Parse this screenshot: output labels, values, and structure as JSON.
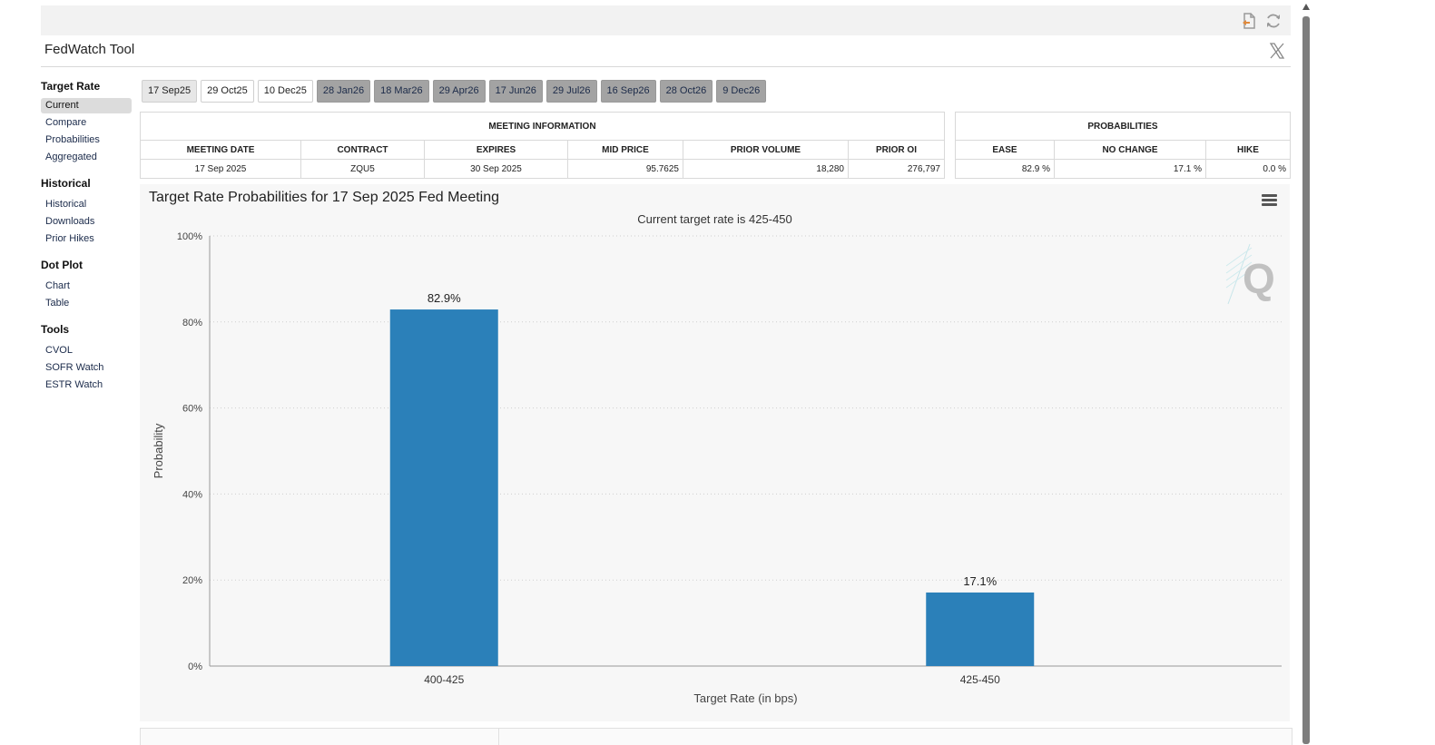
{
  "app": {
    "title": "FedWatch Tool"
  },
  "toolbar": {
    "icons": [
      "export-icon",
      "refresh-icon"
    ]
  },
  "sidebar": {
    "sections": [
      {
        "heading": "Target Rate",
        "items": [
          "Current",
          "Compare",
          "Probabilities",
          "Aggregated"
        ]
      },
      {
        "heading": "Historical",
        "items": [
          "Historical",
          "Downloads",
          "Prior Hikes"
        ]
      },
      {
        "heading": "Dot Plot",
        "items": [
          "Chart",
          "Table"
        ]
      },
      {
        "heading": "Tools",
        "items": [
          "CVOL",
          "SOFR Watch",
          "ESTR Watch"
        ]
      }
    ],
    "active": "Current"
  },
  "tabs": [
    "17 Sep25",
    "29 Oct25",
    "10 Dec25",
    "28 Jan26",
    "18 Mar26",
    "29 Apr26",
    "17 Jun26",
    "29 Jul26",
    "16 Sep26",
    "28 Oct26",
    "9 Dec26"
  ],
  "meeting_info": {
    "caption": "MEETING INFORMATION",
    "headers": [
      "MEETING DATE",
      "CONTRACT",
      "EXPIRES",
      "MID PRICE",
      "PRIOR VOLUME",
      "PRIOR OI"
    ],
    "row": [
      "17 Sep 2025",
      "ZQU5",
      "30 Sep 2025",
      "95.7625",
      "18,280",
      "276,797"
    ]
  },
  "probabilities": {
    "caption": "PROBABILITIES",
    "headers": [
      "EASE",
      "NO CHANGE",
      "HIKE"
    ],
    "row": [
      "82.9 %",
      "17.1 %",
      "0.0 %"
    ]
  },
  "chart": {
    "title": "Target Rate Probabilities for 17 Sep 2025 Fed Meeting",
    "subtitle": "Current target rate is 425-450",
    "bar_color": "#2b80b9"
  },
  "chart_data": {
    "type": "bar",
    "title": "Target Rate Probabilities for 17 Sep 2025 Fed Meeting",
    "subtitle": "Current target rate is 425-450",
    "categories": [
      "400-425",
      "425-450"
    ],
    "values": [
      82.9,
      17.1
    ],
    "data_labels": [
      "82.9%",
      "17.1%"
    ],
    "xlabel": "Target Rate (in bps)",
    "ylabel": "Probability",
    "ylim": [
      0,
      100
    ],
    "yticks": [
      "0%",
      "20%",
      "40%",
      "60%",
      "80%",
      "100%"
    ],
    "grid": true
  }
}
